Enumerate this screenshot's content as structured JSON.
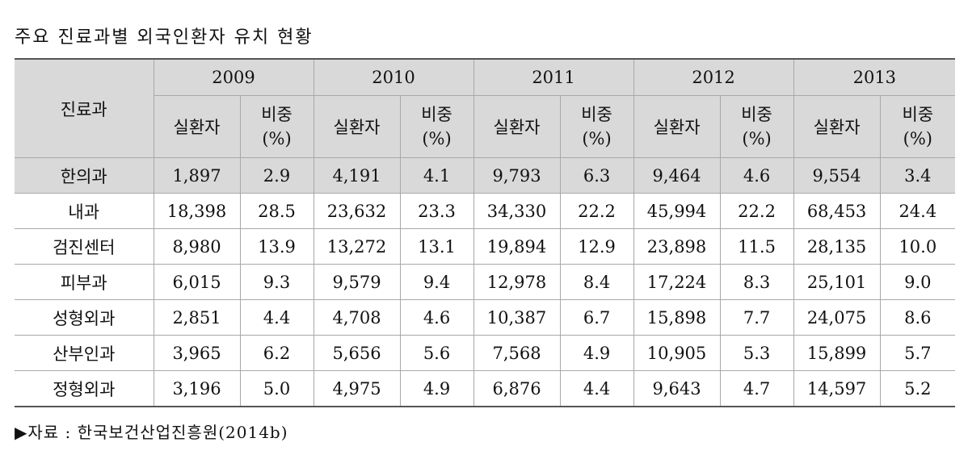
{
  "title": "주요 진료과별 외국인환자 유치 현황",
  "header": {
    "dept_label": "진료과",
    "years": [
      "2009",
      "2010",
      "2011",
      "2012",
      "2013"
    ],
    "col_patients": "실환자",
    "col_share_line1": "비중",
    "col_share_line2": "(%)"
  },
  "rows": [
    {
      "dept": "한의과",
      "vals": [
        "1,897",
        "2.9",
        "4,191",
        "4.1",
        "9,793",
        "6.3",
        "9,464",
        "4.6",
        "9,554",
        "3.4"
      ]
    },
    {
      "dept": "내과",
      "vals": [
        "18,398",
        "28.5",
        "23,632",
        "23.3",
        "34,330",
        "22.2",
        "45,994",
        "22.2",
        "68,453",
        "24.4"
      ]
    },
    {
      "dept": "검진센터",
      "vals": [
        "8,980",
        "13.9",
        "13,272",
        "13.1",
        "19,894",
        "12.9",
        "23,898",
        "11.5",
        "28,135",
        "10.0"
      ]
    },
    {
      "dept": "피부과",
      "vals": [
        "6,015",
        "9.3",
        "9,579",
        "9.4",
        "12,978",
        "8.4",
        "17,224",
        "8.3",
        "25,101",
        "9.0"
      ]
    },
    {
      "dept": "성형외과",
      "vals": [
        "2,851",
        "4.4",
        "4,708",
        "4.6",
        "10,387",
        "6.7",
        "15,898",
        "7.7",
        "24,075",
        "8.6"
      ]
    },
    {
      "dept": "산부인과",
      "vals": [
        "3,965",
        "6.2",
        "5,656",
        "5.6",
        "7,568",
        "4.9",
        "10,905",
        "5.3",
        "15,899",
        "5.7"
      ]
    },
    {
      "dept": "정형외과",
      "vals": [
        "3,196",
        "5.0",
        "4,975",
        "4.9",
        "6,876",
        "4.4",
        "9,643",
        "4.7",
        "14,597",
        "5.2"
      ]
    }
  ],
  "source": "▶자료 : 한국보건산업진흥원(2014b)"
}
